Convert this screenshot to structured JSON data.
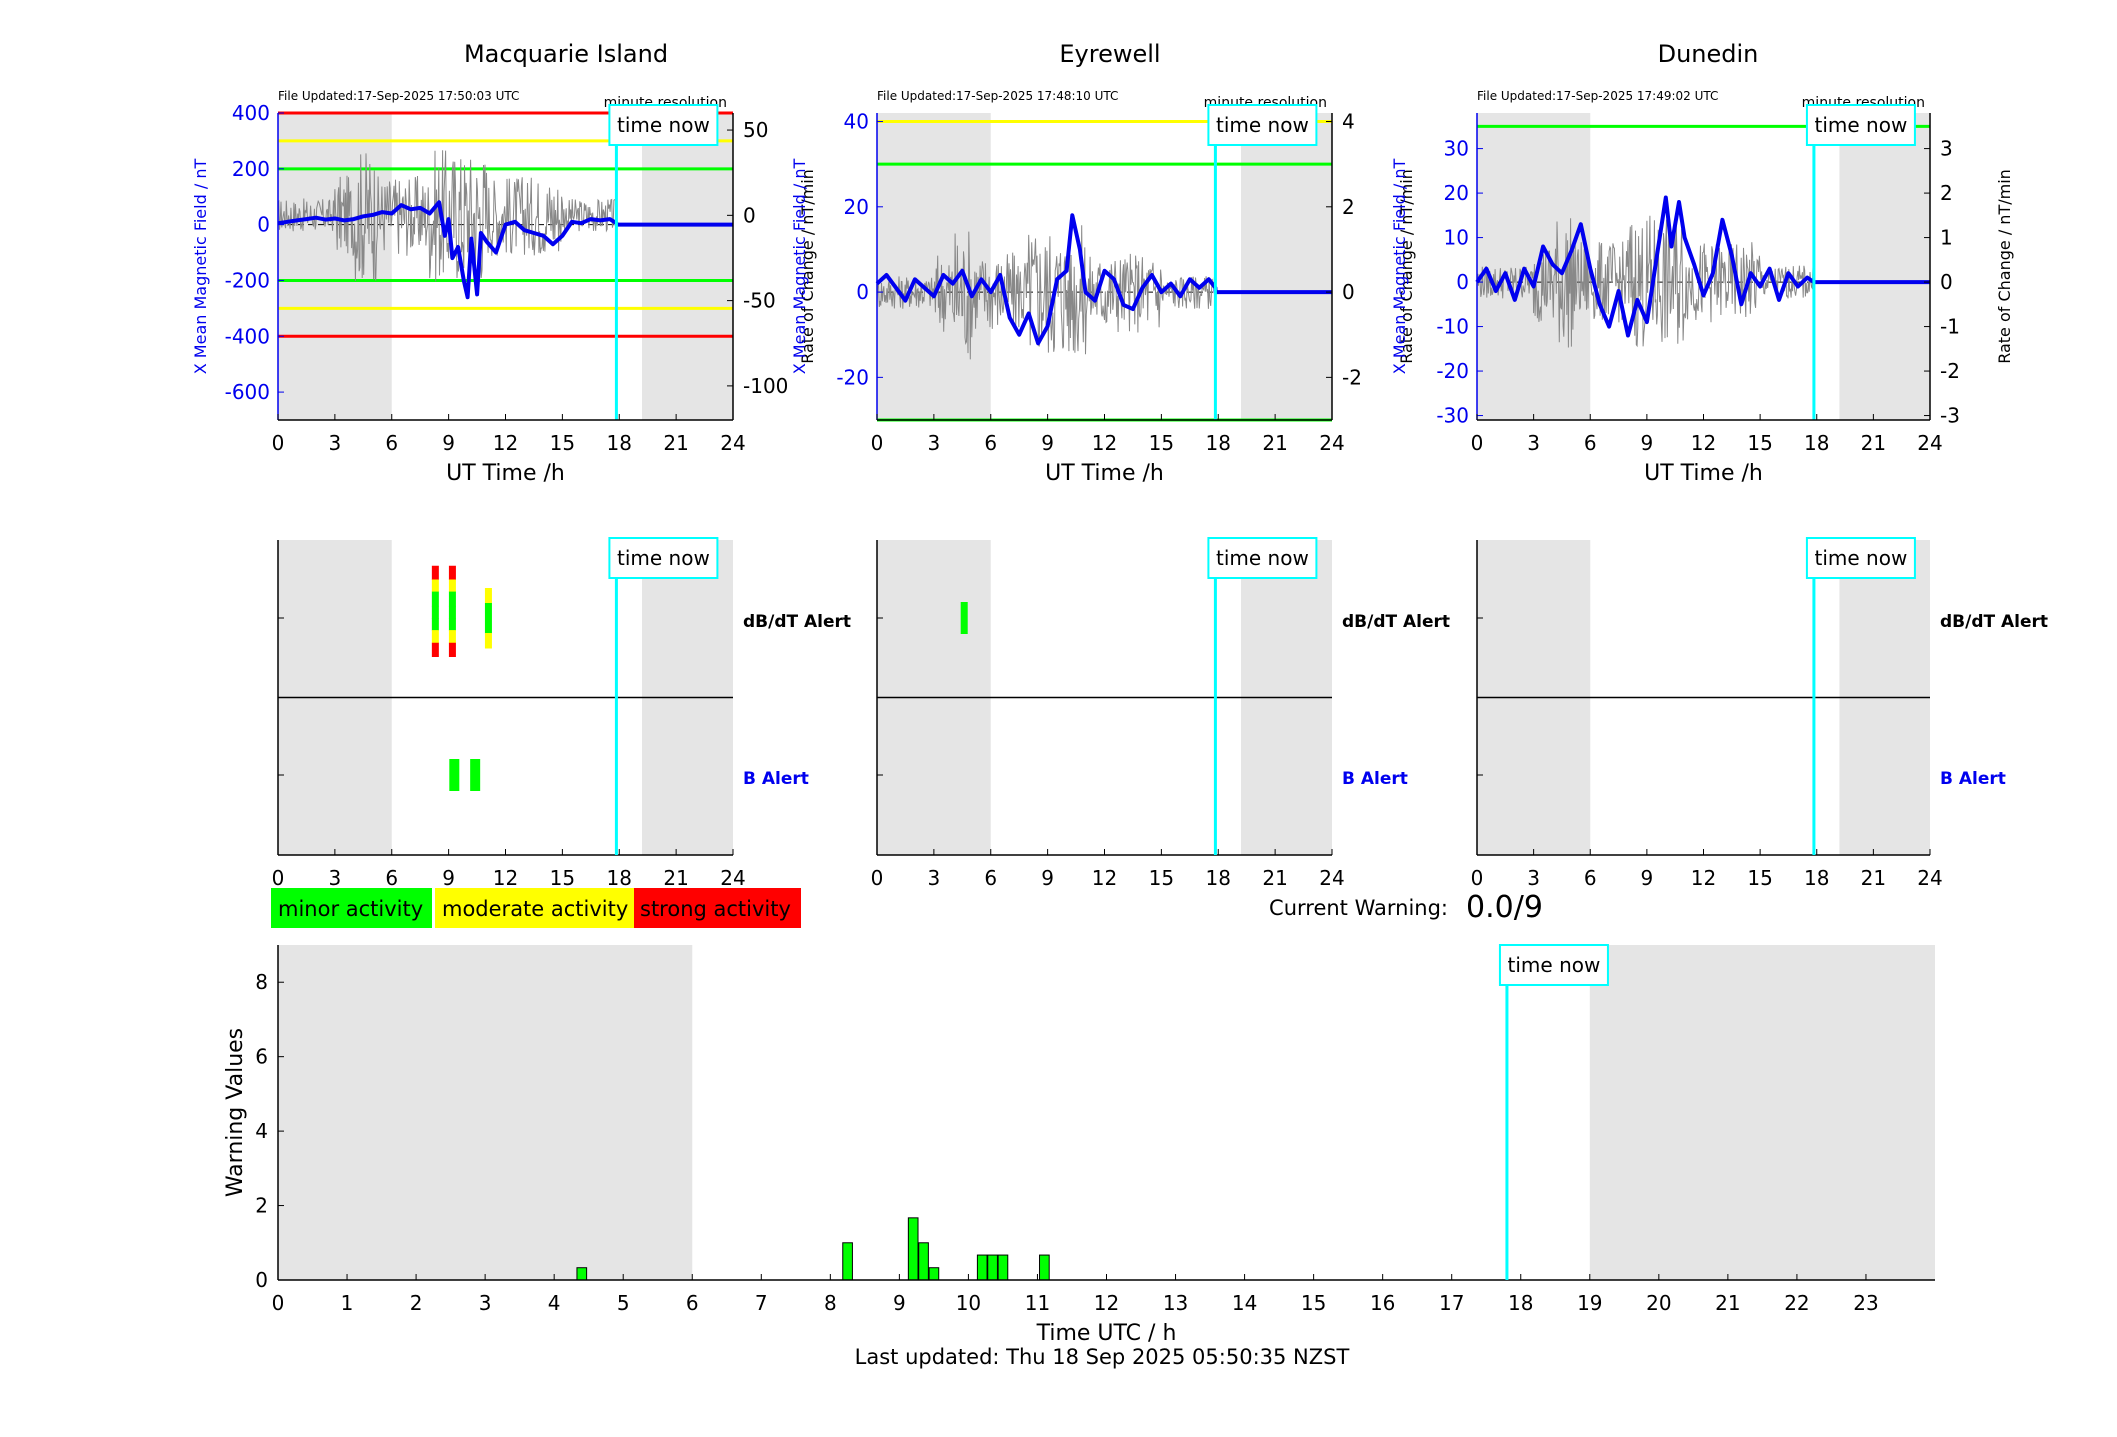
{
  "colors": {
    "minor": "#00ff00",
    "moderate": "#ffff00",
    "strong": "#ff0000",
    "time_now": "#00ffff",
    "field": "#0000ee",
    "shade": "#e5e5e5"
  },
  "common": {
    "xlabel_ut": "UT Time /h",
    "ylabel_field": "X Mean Magnetic Field / nT",
    "ylabel_rate": "Rate of Change / nT/min",
    "resolution": "minute resolution",
    "time_now_label": "time now",
    "dbdt_alert": "dB/dT Alert",
    "b_alert": "B Alert",
    "ut_ticks": [
      "0",
      "3",
      "6",
      "9",
      "12",
      "15",
      "18",
      "21",
      "24"
    ]
  },
  "legend": {
    "minor": "minor activity",
    "moderate": "moderate activity",
    "strong": "strong activity"
  },
  "current_warning": {
    "label": "Current Warning:",
    "value": "0.0/9"
  },
  "footer": {
    "last_updated": "Last updated: Thu 18 Sep 2025 05:50:35 NZST"
  },
  "chart_data": [
    {
      "type": "line",
      "title": "Macquarie Island",
      "file_updated": "File Updated:17-Sep-2025 17:50:03 UTC",
      "xlim": [
        0,
        24
      ],
      "ylim_left": [
        -700,
        400
      ],
      "yticks_left": [
        "400",
        "200",
        "0",
        "-200",
        "-400",
        "-600"
      ],
      "ylim_right": [
        -120,
        60
      ],
      "yticks_right": [
        "50",
        "0",
        "-50",
        "-100"
      ],
      "shaded_ut": [
        [
          0,
          6
        ],
        [
          19.2,
          24
        ]
      ],
      "time_now_ut": 17.85,
      "threshold_lines": [
        {
          "y": 400,
          "color": "red"
        },
        {
          "y": -400,
          "color": "red"
        },
        {
          "y": 300,
          "color": "yellow"
        },
        {
          "y": -300,
          "color": "yellow"
        },
        {
          "y": 200,
          "color": "green"
        },
        {
          "y": -200,
          "color": "green"
        }
      ],
      "series": [
        {
          "points": [
            [
              0,
              5
            ],
            [
              0.5,
              10
            ],
            [
              1,
              15
            ],
            [
              1.5,
              20
            ],
            [
              2,
              25
            ],
            [
              2.5,
              18
            ],
            [
              3,
              22
            ],
            [
              3.5,
              15
            ],
            [
              4,
              20
            ],
            [
              4.5,
              30
            ],
            [
              5,
              35
            ],
            [
              5.5,
              45
            ],
            [
              6,
              40
            ],
            [
              6.5,
              70
            ],
            [
              7,
              55
            ],
            [
              7.5,
              60
            ],
            [
              8,
              40
            ],
            [
              8.5,
              80
            ],
            [
              8.8,
              -40
            ],
            [
              9,
              20
            ],
            [
              9.2,
              -120
            ],
            [
              9.5,
              -80
            ],
            [
              9.8,
              -200
            ],
            [
              10,
              -260
            ],
            [
              10.2,
              -50
            ],
            [
              10.5,
              -250
            ],
            [
              10.7,
              -30
            ],
            [
              11,
              -60
            ],
            [
              11.5,
              -100
            ],
            [
              12,
              0
            ],
            [
              12.5,
              10
            ],
            [
              13,
              -20
            ],
            [
              13.5,
              -30
            ],
            [
              14,
              -40
            ],
            [
              14.5,
              -70
            ],
            [
              15,
              -40
            ],
            [
              15.5,
              10
            ],
            [
              16,
              5
            ],
            [
              16.5,
              20
            ],
            [
              17,
              15
            ],
            [
              17.5,
              20
            ],
            [
              17.85,
              5
            ],
            [
              17.86,
              0
            ],
            [
              24,
              0
            ]
          ]
        }
      ],
      "dbdt_alerts": [
        {
          "ut": 8.3,
          "level": "strong"
        },
        {
          "ut": 9.2,
          "level": "strong"
        },
        {
          "ut": 11.1,
          "level": "moderate"
        }
      ],
      "b_alerts": [
        {
          "ut": 9.3,
          "level": "minor"
        },
        {
          "ut": 10.4,
          "level": "minor"
        }
      ]
    },
    {
      "type": "line",
      "title": "Eyrewell",
      "file_updated": "File Updated:17-Sep-2025 17:48:10 UTC",
      "xlim": [
        0,
        24
      ],
      "ylim_left": [
        -30,
        42
      ],
      "yticks_left": [
        "40",
        "20",
        "0",
        "-20"
      ],
      "ylim_right": [
        -3,
        4.2
      ],
      "yticks_right": [
        "4",
        "2",
        "0",
        "-2"
      ],
      "shaded_ut": [
        [
          0,
          6
        ],
        [
          19.2,
          24
        ]
      ],
      "time_now_ut": 17.85,
      "threshold_lines": [
        {
          "y": 40,
          "color": "yellow"
        },
        {
          "y": 30,
          "color": "green"
        },
        {
          "y": -30,
          "color": "green"
        }
      ],
      "series": [
        {
          "points": [
            [
              0,
              2
            ],
            [
              0.5,
              4
            ],
            [
              1,
              1
            ],
            [
              1.5,
              -2
            ],
            [
              2,
              3
            ],
            [
              2.5,
              1
            ],
            [
              3,
              -1
            ],
            [
              3.5,
              4
            ],
            [
              4,
              2
            ],
            [
              4.5,
              5
            ],
            [
              5,
              -1
            ],
            [
              5.5,
              3
            ],
            [
              6,
              0
            ],
            [
              6.5,
              4
            ],
            [
              7,
              -6
            ],
            [
              7.5,
              -10
            ],
            [
              8,
              -5
            ],
            [
              8.5,
              -12
            ],
            [
              9,
              -8
            ],
            [
              9.5,
              3
            ],
            [
              10,
              5
            ],
            [
              10.3,
              18
            ],
            [
              10.7,
              10
            ],
            [
              11,
              0
            ],
            [
              11.5,
              -2
            ],
            [
              12,
              5
            ],
            [
              12.5,
              3
            ],
            [
              13,
              -3
            ],
            [
              13.5,
              -4
            ],
            [
              14,
              1
            ],
            [
              14.5,
              4
            ],
            [
              15,
              0
            ],
            [
              15.5,
              2
            ],
            [
              16,
              -1
            ],
            [
              16.5,
              3
            ],
            [
              17,
              1
            ],
            [
              17.5,
              3
            ],
            [
              17.85,
              1
            ],
            [
              17.86,
              0
            ],
            [
              24,
              0
            ]
          ]
        }
      ],
      "dbdt_alerts": [
        {
          "ut": 4.6,
          "level": "minor"
        }
      ],
      "b_alerts": []
    },
    {
      "type": "line",
      "title": "Dunedin",
      "file_updated": "File Updated:17-Sep-2025 17:49:02 UTC",
      "xlim": [
        0,
        24
      ],
      "ylim_left": [
        -31,
        38
      ],
      "yticks_left": [
        "30",
        "20",
        "10",
        "0",
        "-10",
        "-20",
        "-30"
      ],
      "ylim_right": [
        -3.1,
        3.8
      ],
      "yticks_right": [
        "3",
        "2",
        "1",
        "0",
        "-1",
        "-2",
        "-3"
      ],
      "shaded_ut": [
        [
          0,
          6
        ],
        [
          19.2,
          24
        ]
      ],
      "time_now_ut": 17.85,
      "threshold_lines": [
        {
          "y": 35,
          "color": "green"
        }
      ],
      "series": [
        {
          "points": [
            [
              0,
              0
            ],
            [
              0.5,
              3
            ],
            [
              1,
              -2
            ],
            [
              1.5,
              2
            ],
            [
              2,
              -4
            ],
            [
              2.5,
              3
            ],
            [
              3,
              -1
            ],
            [
              3.5,
              8
            ],
            [
              4,
              4
            ],
            [
              4.5,
              2
            ],
            [
              5,
              7
            ],
            [
              5.5,
              13
            ],
            [
              6,
              3
            ],
            [
              6.5,
              -5
            ],
            [
              7,
              -10
            ],
            [
              7.5,
              -2
            ],
            [
              8,
              -12
            ],
            [
              8.5,
              -4
            ],
            [
              9,
              -9
            ],
            [
              9.5,
              5
            ],
            [
              10,
              19
            ],
            [
              10.3,
              8
            ],
            [
              10.7,
              18
            ],
            [
              11,
              10
            ],
            [
              11.5,
              4
            ],
            [
              12,
              -3
            ],
            [
              12.5,
              2
            ],
            [
              13,
              14
            ],
            [
              13.5,
              6
            ],
            [
              14,
              -5
            ],
            [
              14.5,
              2
            ],
            [
              15,
              -1
            ],
            [
              15.5,
              3
            ],
            [
              16,
              -4
            ],
            [
              16.5,
              2
            ],
            [
              17,
              -1
            ],
            [
              17.5,
              1
            ],
            [
              17.85,
              0
            ],
            [
              24,
              0
            ]
          ]
        }
      ],
      "dbdt_alerts": [],
      "b_alerts": []
    },
    {
      "type": "bar",
      "xlabel": "Time UTC / h",
      "ylabel": "Warning Values",
      "xlim": [
        0,
        24
      ],
      "ylim": [
        0,
        9
      ],
      "xticks": [
        "0",
        "1",
        "2",
        "3",
        "4",
        "5",
        "6",
        "7",
        "8",
        "9",
        "10",
        "11",
        "12",
        "13",
        "14",
        "15",
        "16",
        "17",
        "18",
        "19",
        "20",
        "21",
        "22",
        "23"
      ],
      "yticks": [
        "0",
        "2",
        "4",
        "6",
        "8"
      ],
      "shaded_ut": [
        [
          0,
          6
        ],
        [
          19,
          24
        ]
      ],
      "time_now_ut": 17.8,
      "bars": [
        {
          "x": 4.4,
          "y": 0.33
        },
        {
          "x": 8.25,
          "y": 1.0
        },
        {
          "x": 9.2,
          "y": 1.67
        },
        {
          "x": 9.35,
          "y": 1.0
        },
        {
          "x": 9.5,
          "y": 0.33
        },
        {
          "x": 10.2,
          "y": 0.67
        },
        {
          "x": 10.35,
          "y": 0.67
        },
        {
          "x": 10.5,
          "y": 0.67
        },
        {
          "x": 11.1,
          "y": 0.67
        }
      ]
    }
  ]
}
